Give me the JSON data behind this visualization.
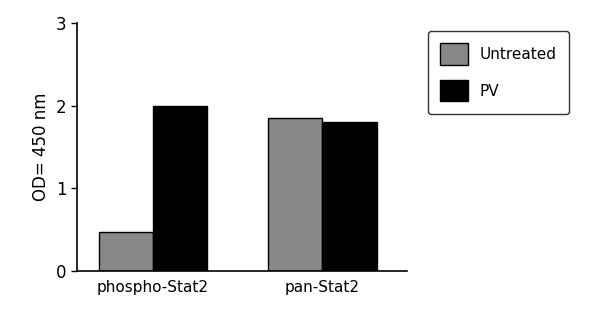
{
  "categories": [
    "phospho-Stat2",
    "pan-Stat2"
  ],
  "untreated_values": [
    0.47,
    1.85
  ],
  "pv_values": [
    2.0,
    1.8
  ],
  "untreated_color": "#888888",
  "pv_color": "#000000",
  "ylabel": "OD= 450 nm",
  "ylim": [
    0,
    3
  ],
  "yticks": [
    0,
    1,
    2,
    3
  ],
  "legend_labels": [
    "Untreated",
    "PV"
  ],
  "bar_width": 0.32,
  "figsize": [
    5.9,
    3.3
  ],
  "dpi": 100
}
